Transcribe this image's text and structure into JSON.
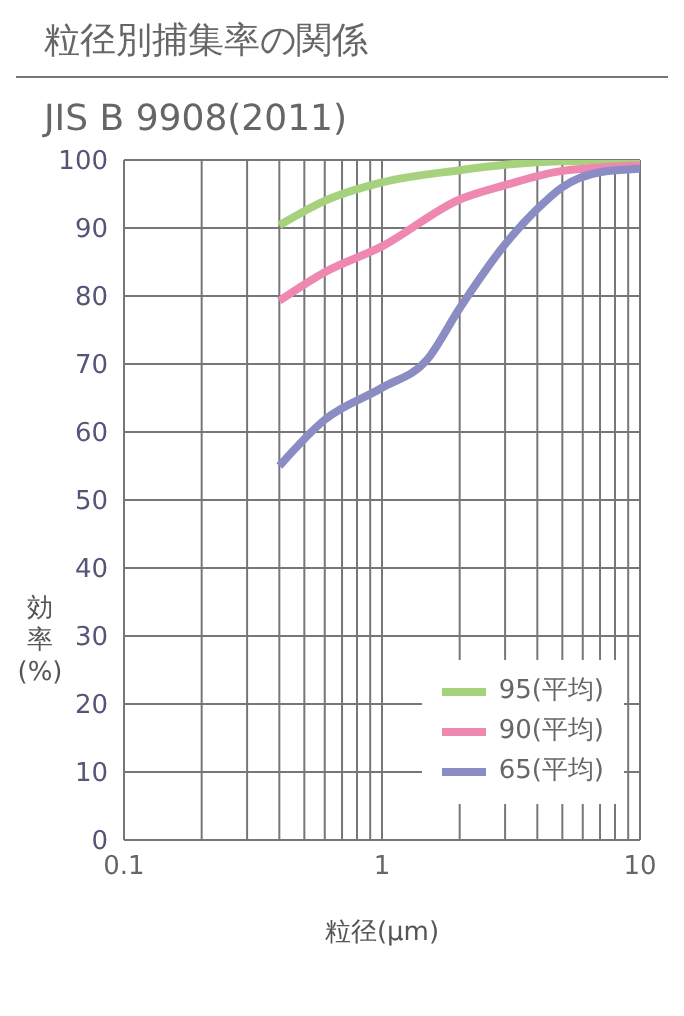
{
  "chart_data": {
    "type": "line",
    "title": "粒径別捕集率の関係",
    "subtitle": "JIS B 9908(2011)",
    "xlabel": "粒径(μm)",
    "ylabel": "効率(%)",
    "log": "x",
    "grid": true,
    "legend": "bottom right",
    "xlim": [
      0.1,
      10
    ],
    "ylim": [
      0,
      100
    ],
    "xticks": [
      0.1,
      {
        "value": 0.2,
        "label": null
      },
      {
        "value": 0.3,
        "label": null
      },
      {
        "value": 0.4,
        "label": null
      },
      {
        "value": 0.5,
        "label": null
      },
      {
        "value": 0.6,
        "label": null
      },
      {
        "value": 0.7,
        "label": null
      },
      {
        "value": 0.8,
        "label": null
      },
      {
        "value": 0.9,
        "label": null
      },
      1,
      {
        "value": 2,
        "label": null
      },
      {
        "value": 3,
        "label": null
      },
      {
        "value": 4,
        "label": null
      },
      {
        "value": 5,
        "label": null
      },
      {
        "value": 6,
        "label": null
      },
      {
        "value": 7,
        "label": null
      },
      {
        "value": 8,
        "label": null
      },
      {
        "value": 9,
        "label": null
      },
      10
    ],
    "yticks": [
      0,
      10,
      20,
      30,
      40,
      50,
      60,
      70,
      80,
      90,
      100
    ],
    "series": [
      {
        "name": "95(平均)",
        "color": "#a6d27e",
        "x": [
          0.4,
          0.6,
          1,
          2,
          3,
          5,
          10
        ],
        "values": [
          90.4,
          94,
          96.7,
          98.5,
          99.3,
          99.8,
          100
        ]
      },
      {
        "name": "90(平均)",
        "color": "#ee88b0",
        "x": [
          0.4,
          0.6,
          1,
          2,
          3,
          5,
          10
        ],
        "values": [
          79.3,
          83.5,
          87.3,
          94.2,
          96.3,
          98.4,
          99.2
        ]
      },
      {
        "name": "65(平均)",
        "color": "#8c8cc4",
        "x": [
          0.4,
          0.6,
          1,
          1.5,
          2,
          3,
          4,
          5,
          7,
          10
        ],
        "values": [
          55,
          61.8,
          66.5,
          70.7,
          78.2,
          87.6,
          92.8,
          96,
          98.2,
          98.7
        ]
      }
    ]
  }
}
